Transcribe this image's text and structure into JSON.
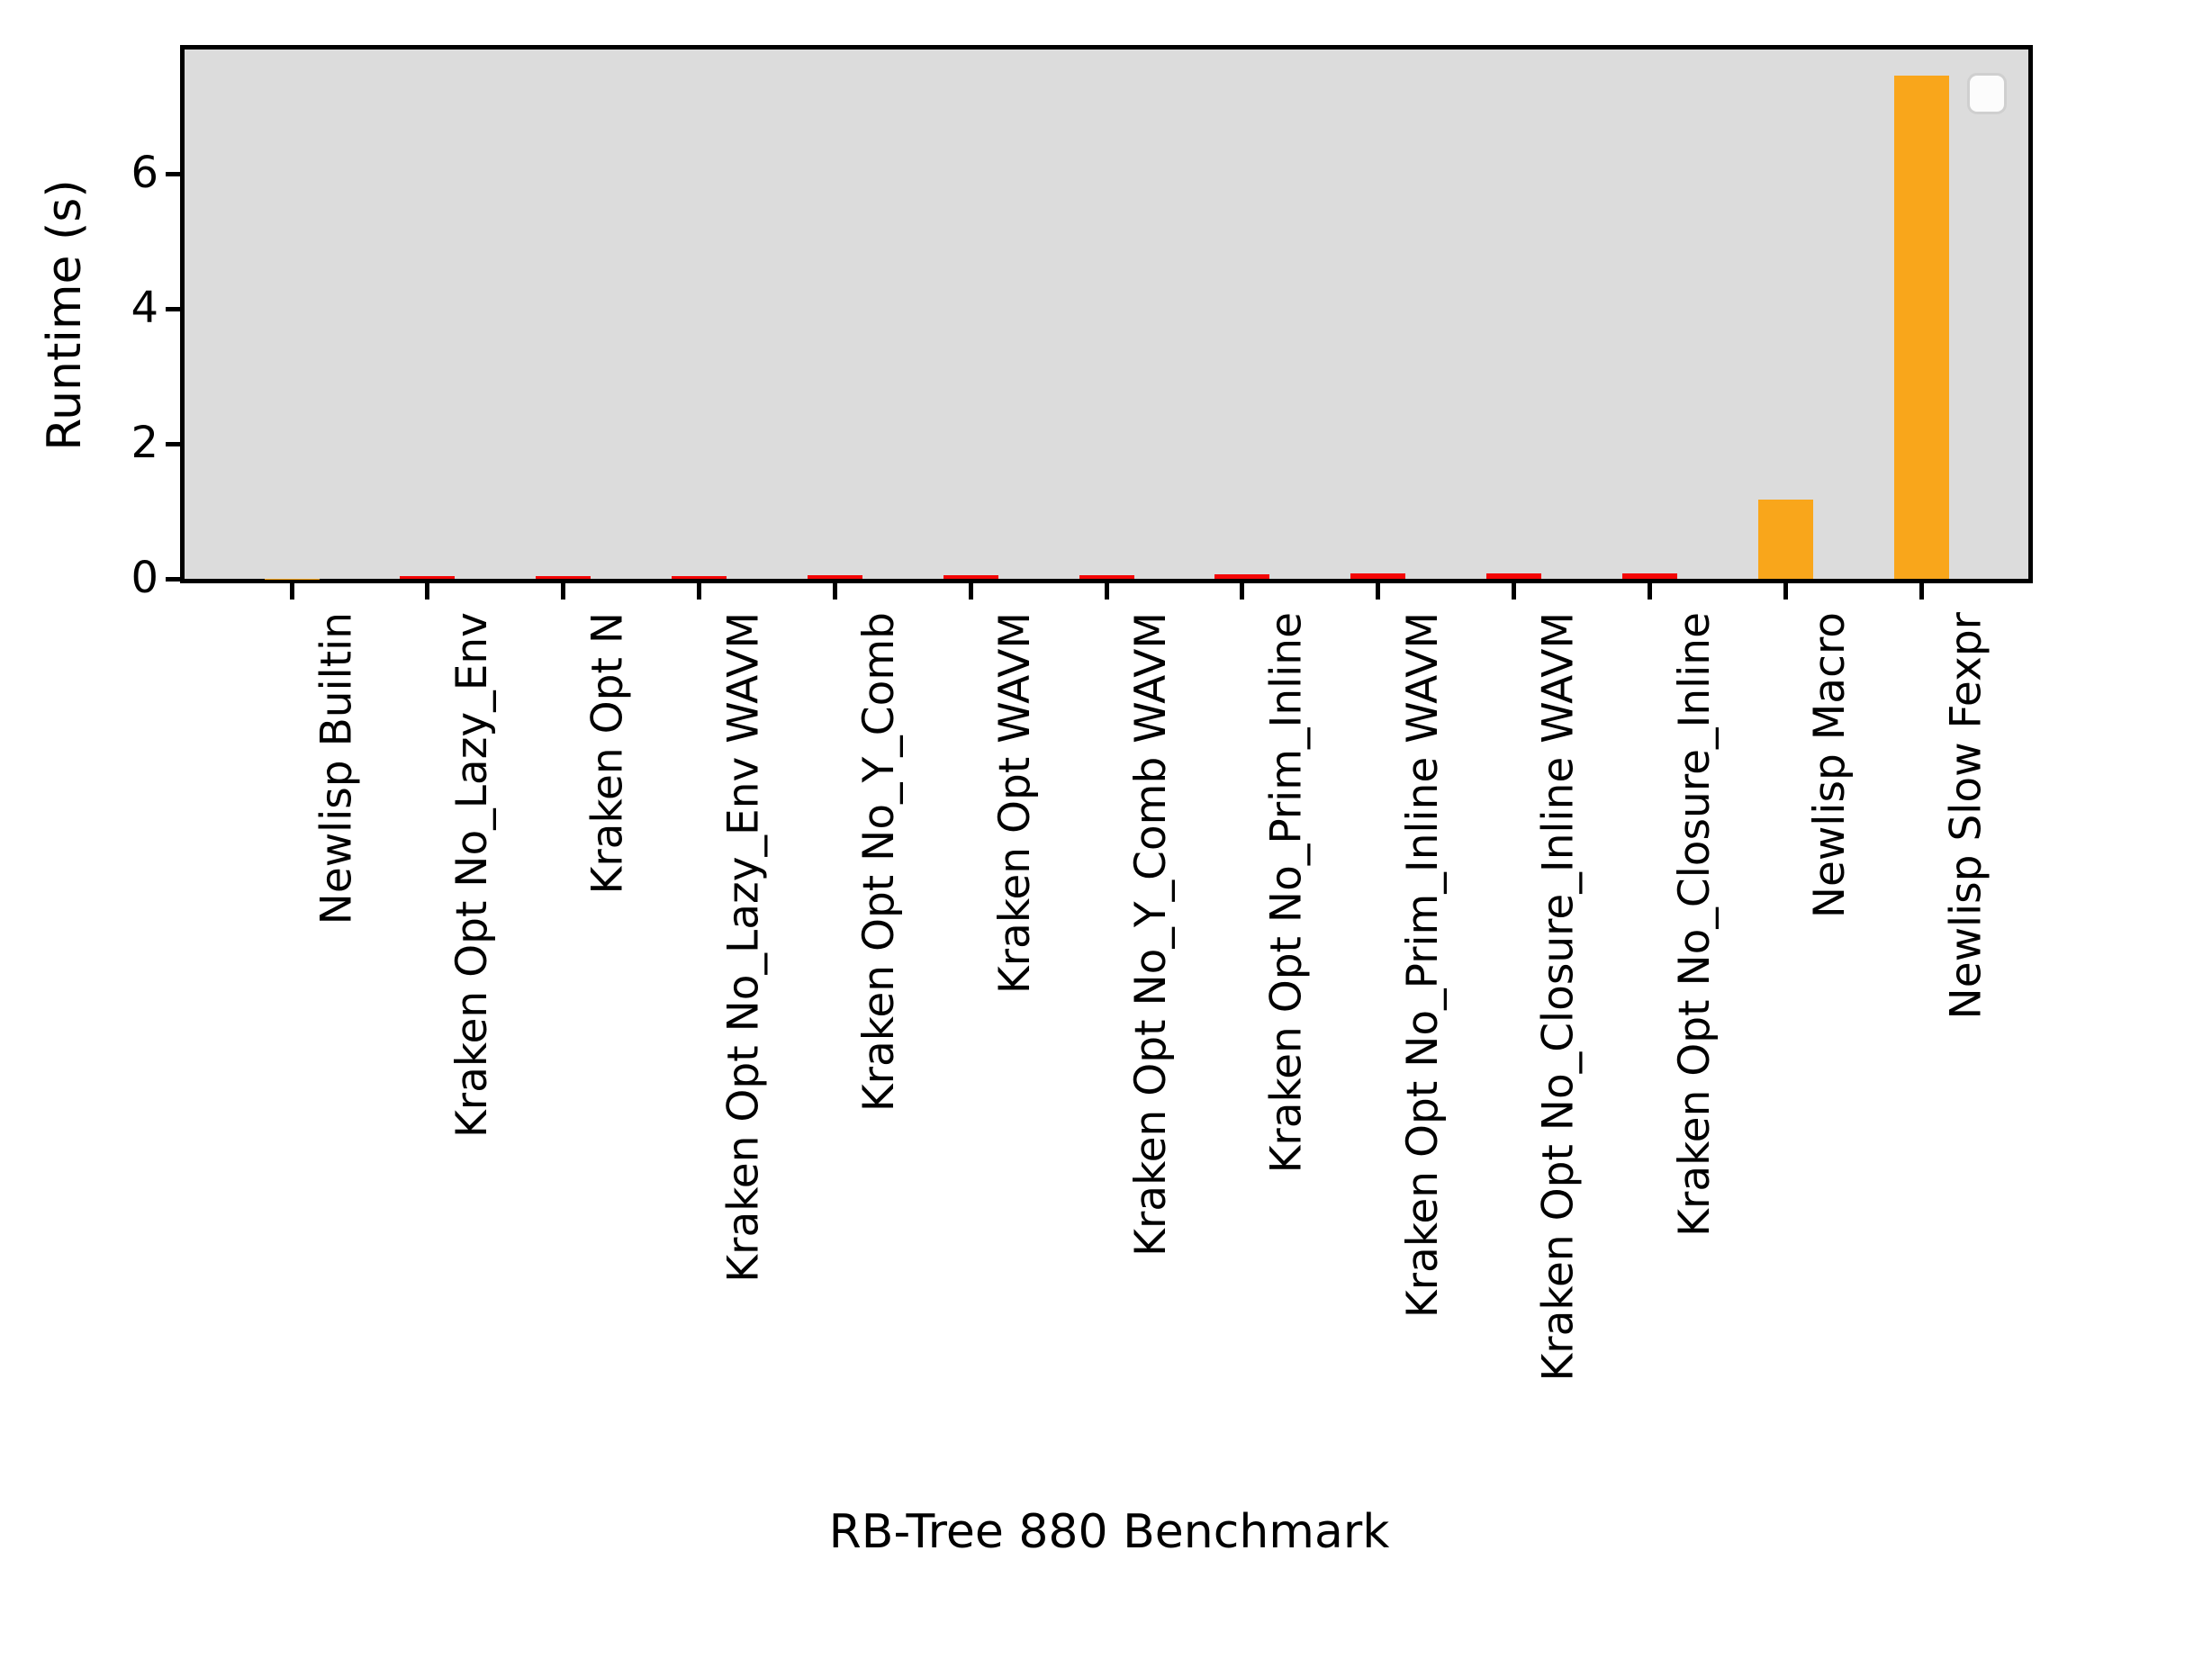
{
  "chart_data": {
    "type": "bar",
    "title": "",
    "xlabel": "RB-Tree 880 Benchmark",
    "ylabel": "Runtime (s)",
    "ylim": [
      0,
      7.84
    ],
    "yticks": [
      0,
      2,
      4,
      6
    ],
    "grid": false,
    "plot_bg_color": "#dcdcdc",
    "spine_color": "#000000",
    "legend": {
      "visible": true,
      "position": "upper right",
      "entries": []
    },
    "categories": [
      "Newlisp Builtin",
      "Kraken Opt No_Lazy_Env",
      "Kraken Opt N",
      "Kraken Opt No_Lazy_Env WAVM",
      "Kraken Opt No_Y_Comb",
      "Kraken Opt WAVM",
      "Kraken Opt No_Y_Comb WAVM",
      "Kraken Opt No_Prim_Inline",
      "Kraken Opt No_Prim_Inline WAVM",
      "Kraken Opt No_Closure_Inline WAVM",
      "Kraken Opt No_Closure_Inline",
      "Newlisp Macro",
      "Newlisp Slow Fexpr"
    ],
    "values": [
      0.005,
      0.035,
      0.035,
      0.045,
      0.05,
      0.055,
      0.06,
      0.065,
      0.075,
      0.08,
      0.08,
      1.17,
      7.45
    ],
    "bar_colors": [
      "#f9a61b",
      "#f40606",
      "#f40606",
      "#f40606",
      "#f40606",
      "#f40606",
      "#f40606",
      "#f40606",
      "#f40606",
      "#f40606",
      "#f40606",
      "#f9a61b",
      "#f9a61b"
    ],
    "series_colors": {
      "kraken_red": "#f40606",
      "newlisp_orange": "#f9a61b"
    }
  }
}
